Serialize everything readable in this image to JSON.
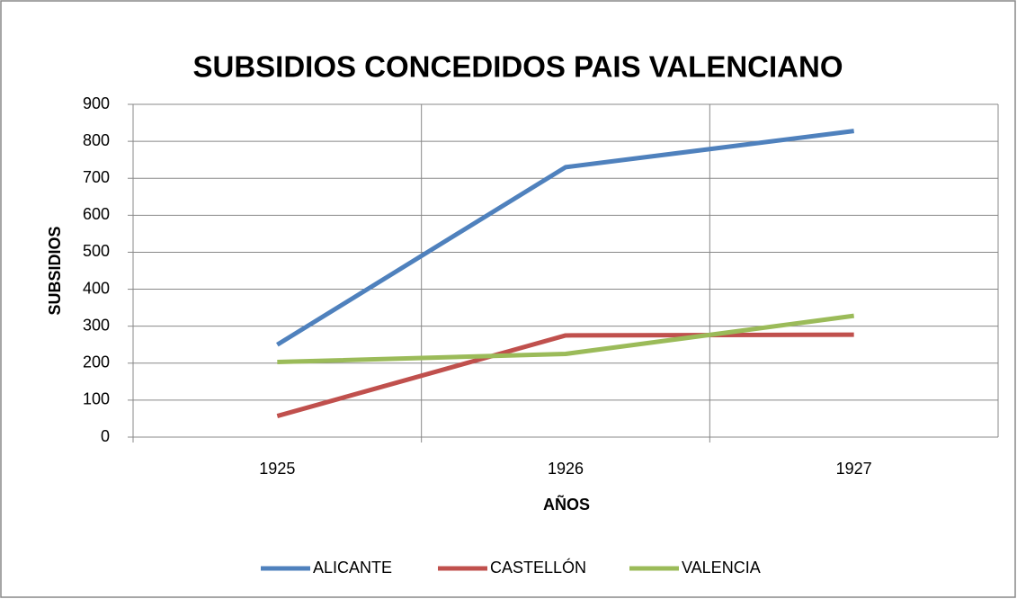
{
  "chart_data": {
    "type": "line",
    "title": "SUBSIDIOS CONCEDIDOS PAIS VALENCIANO",
    "x_label": "AÑOS",
    "y_label": "SUBSIDIOS",
    "categories": [
      "1925",
      "1926",
      "1927"
    ],
    "series": [
      {
        "name": "ALICANTE",
        "color": "#4f81bd",
        "values": [
          250,
          730,
          828
        ]
      },
      {
        "name": "CASTELLÓN",
        "color": "#c0504d",
        "values": [
          57,
          275,
          277
        ]
      },
      {
        "name": "VALENCIA",
        "color": "#9bbb59",
        "values": [
          203,
          225,
          328
        ]
      }
    ],
    "ylim": [
      0,
      900
    ],
    "yticks": [
      0,
      100,
      200,
      300,
      400,
      500,
      600,
      700,
      800,
      900
    ],
    "grid": true,
    "legend": "bottom"
  }
}
